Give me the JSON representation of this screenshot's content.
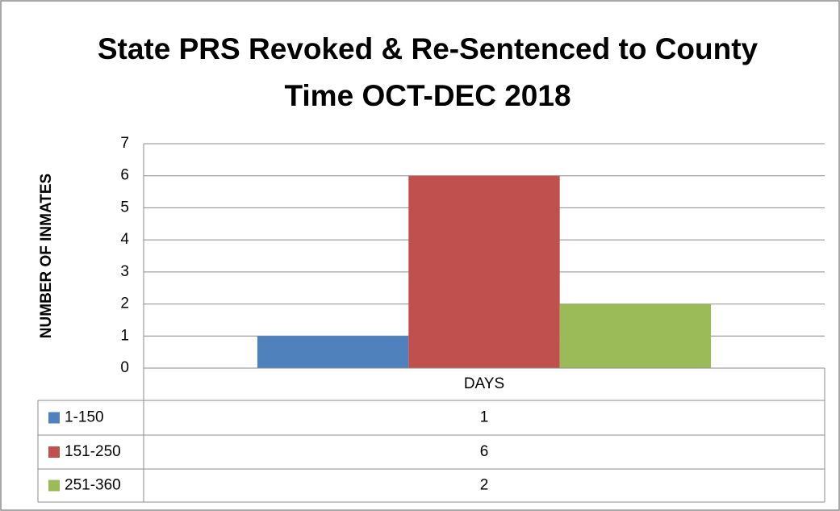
{
  "chart_data": {
    "type": "bar",
    "title": "State PRS Revoked & Re-Sentenced to County Time OCT-DEC 2018",
    "y_label": "NUMBER OF INMATES",
    "categories": [
      "DAYS"
    ],
    "series": [
      {
        "name": "1-150",
        "color": "#4f81bd",
        "values": [
          1
        ]
      },
      {
        "name": "151-250",
        "color": "#c0504d",
        "values": [
          6
        ]
      },
      {
        "name": "251-360",
        "color": "#9bbb59",
        "values": [
          2
        ]
      }
    ],
    "ylim": [
      0,
      7
    ],
    "yticks": [
      0,
      1,
      2,
      3,
      4,
      5,
      6,
      7
    ],
    "grid": true,
    "legend": "data-table"
  }
}
